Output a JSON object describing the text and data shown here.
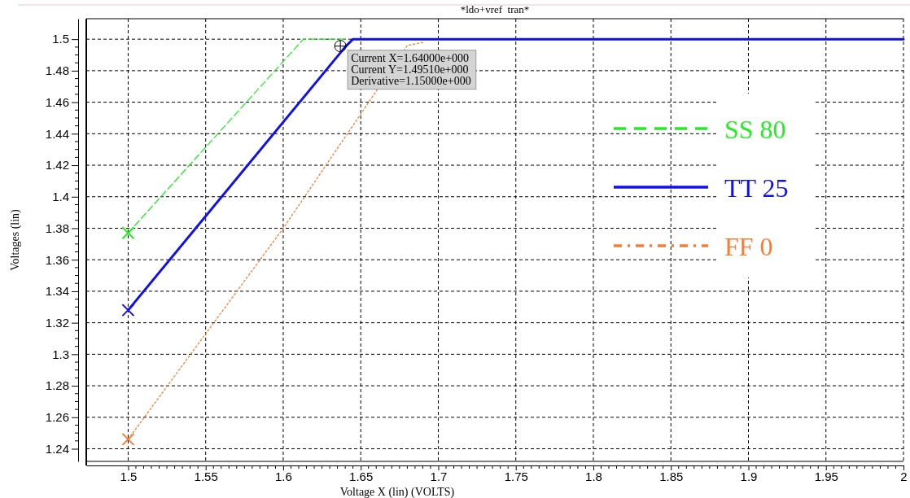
{
  "chart_data": {
    "type": "line",
    "title": "*ldo+vref  tran*",
    "xlabel": "Voltage X (lin) (VOLTS)",
    "ylabel": "Voltages (lin)",
    "xlim": [
      1.473,
      2.0
    ],
    "xticks": [
      1.5,
      1.55,
      1.6,
      1.65,
      1.7,
      1.75,
      1.8,
      1.85,
      1.9,
      1.95,
      2
    ],
    "ylim": [
      1.232,
      1.513
    ],
    "yticks": [
      1.24,
      1.26,
      1.28,
      1.3,
      1.32,
      1.34,
      1.36,
      1.38,
      1.4,
      1.42,
      1.44,
      1.46,
      1.48,
      1.5
    ],
    "grid": true,
    "legend": "right",
    "series": [
      {
        "name": "SS 80",
        "color": "#22ee22",
        "line_style": "dashed",
        "x": [
          1.5,
          1.613,
          1.64
        ],
        "values": [
          1.377,
          1.5,
          1.5
        ]
      },
      {
        "name": "TT 25",
        "color": "#1010ee",
        "line_style": "solid",
        "x": [
          1.5,
          1.64,
          1.645,
          1.7,
          2.0
        ],
        "values": [
          1.328,
          1.4951,
          1.5,
          1.5,
          1.5
        ]
      },
      {
        "name": "FF 0",
        "color": "#ff7a30",
        "line_style": "dotted",
        "x": [
          1.5,
          1.6,
          1.68,
          1.69
        ],
        "values": [
          1.246,
          1.38,
          1.496,
          1.498
        ]
      },
      {
        "type": "scatter",
        "marker": "cross",
        "color": "#22ee22",
        "x": [
          1.5
        ],
        "values": [
          1.377
        ]
      },
      {
        "type": "scatter",
        "marker": "cross",
        "color": "#1010ee",
        "x": [
          1.5
        ],
        "values": [
          1.328
        ]
      },
      {
        "type": "scatter",
        "marker": "cross",
        "color": "#ff7a30",
        "x": [
          1.5
        ],
        "values": [
          1.246
        ]
      }
    ],
    "annotations": [
      {
        "text": "Current X=1.64000e+000\nCurrent Y=1.49510e+000\nDerivative=1.15000e+000",
        "x": 1.64,
        "y": 1.4951
      }
    ]
  }
}
